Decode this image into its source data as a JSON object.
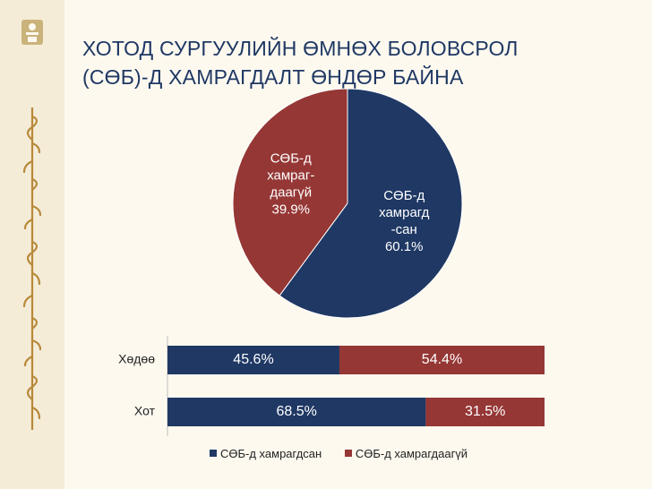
{
  "title": {
    "line1": "ХОТОД СУРГУУЛИЙН  ӨМНӨХ БОЛОВСРОЛ",
    "line2": "(СӨБ)-Д ХАМРАГДАЛТ  ӨНДӨР БАЙНА"
  },
  "colors": {
    "covered": "#1f3864",
    "not_covered": "#953735",
    "background": "#fdf9ef",
    "sidebar": "#f4ecd7",
    "title": "#1f3864"
  },
  "chart_data": [
    {
      "type": "pie",
      "slices": [
        {
          "label_lines": [
            "СӨБ-д",
            "хамрагд",
            "-сан"
          ],
          "value": 60.1,
          "value_label": "60.1%",
          "color": "#1f3864"
        },
        {
          "label_lines": [
            "СӨБ-д",
            "хамраг-",
            "даагүй"
          ],
          "value": 39.9,
          "value_label": "39.9%",
          "color": "#953735"
        }
      ]
    },
    {
      "type": "bar",
      "orientation": "horizontal",
      "stacked": true,
      "categories": [
        "Хөдөө",
        "Хот"
      ],
      "series": [
        {
          "name": "СӨБ-д хамрагдсан",
          "values": [
            45.6,
            68.5
          ],
          "labels": [
            "45.6%",
            "68.5%"
          ],
          "color": "#1f3864"
        },
        {
          "name": "СӨБ-д хамрагдаагүй",
          "values": [
            54.4,
            31.5
          ],
          "labels": [
            "54.4%",
            "31.5%"
          ],
          "color": "#953735"
        }
      ],
      "xlim": [
        0,
        100
      ],
      "legend": "bottom"
    }
  ]
}
